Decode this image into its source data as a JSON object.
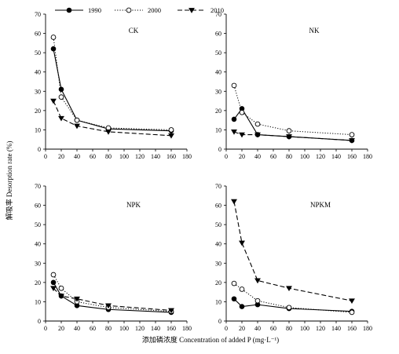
{
  "legend": {
    "items": [
      {
        "label": "1990",
        "style": "solid",
        "marker": "filled-circle"
      },
      {
        "label": "2000",
        "style": "dotted",
        "marker": "open-circle"
      },
      {
        "label": "2010",
        "style": "dashed",
        "marker": "filled-triangle-down"
      }
    ]
  },
  "axes": {
    "ylabel": "解吸率 Desorption rate (%)",
    "xlabel": "添加磷浓度 Concentration of added P (mg·L⁻¹)",
    "xticks": [
      "0",
      "20",
      "40",
      "60",
      "80",
      "100",
      "120",
      "140",
      "160",
      "180"
    ],
    "yticks": [
      "0",
      "10",
      "20",
      "30",
      "40",
      "50",
      "60",
      "70"
    ]
  },
  "colors": {
    "line": "#000000",
    "background": "#ffffff"
  },
  "chart_data": [
    {
      "type": "line",
      "title": "CK",
      "x": [
        10,
        20,
        40,
        80,
        160
      ],
      "xlim": [
        0,
        180
      ],
      "ylim": [
        0,
        70
      ],
      "grid": false,
      "legend_position": "top-left",
      "series": [
        {
          "name": "1990",
          "values": [
            52,
            31,
            15,
            10.5,
            9.5
          ]
        },
        {
          "name": "2000",
          "values": [
            58,
            27,
            15,
            11,
            10
          ]
        },
        {
          "name": "2010",
          "values": [
            25,
            16,
            12,
            9,
            7
          ]
        }
      ]
    },
    {
      "type": "line",
      "title": "NK",
      "x": [
        10,
        20,
        40,
        80,
        160
      ],
      "xlim": [
        0,
        180
      ],
      "ylim": [
        0,
        70
      ],
      "grid": false,
      "series": [
        {
          "name": "1990",
          "values": [
            15.5,
            21,
            7.5,
            6.5,
            4.5
          ]
        },
        {
          "name": "2000",
          "values": [
            33,
            19,
            13,
            9.5,
            7.5
          ]
        },
        {
          "name": "2010",
          "values": [
            9,
            7.5,
            7.5,
            6.5,
            4.5
          ]
        }
      ]
    },
    {
      "type": "line",
      "title": "NPK",
      "x": [
        10,
        20,
        40,
        80,
        160
      ],
      "xlim": [
        0,
        180
      ],
      "ylim": [
        0,
        70
      ],
      "grid": false,
      "series": [
        {
          "name": "1990",
          "values": [
            20,
            13,
            8,
            6,
            4.5
          ]
        },
        {
          "name": "2000",
          "values": [
            24,
            17,
            10,
            7,
            5
          ]
        },
        {
          "name": "2010",
          "values": [
            17,
            13,
            11.5,
            8,
            5.5
          ]
        }
      ]
    },
    {
      "type": "line",
      "title": "NPKM",
      "x": [
        10,
        20,
        40,
        80,
        160
      ],
      "xlim": [
        0,
        180
      ],
      "ylim": [
        0,
        70
      ],
      "grid": false,
      "series": [
        {
          "name": "1990",
          "values": [
            11.5,
            7.5,
            8.5,
            6.5,
            5
          ]
        },
        {
          "name": "2000",
          "values": [
            19.5,
            16.5,
            10.5,
            7,
            4.5
          ]
        },
        {
          "name": "2010",
          "values": [
            62,
            40.5,
            21,
            17,
            10.5
          ]
        }
      ]
    }
  ]
}
